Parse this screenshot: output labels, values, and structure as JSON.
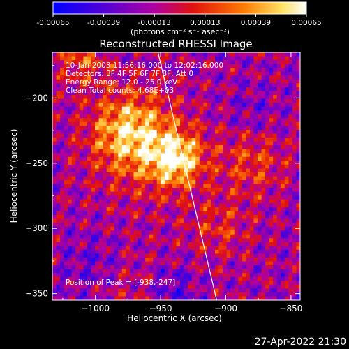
{
  "chart_data": {
    "type": "heatmap",
    "title": "Reconstructed RHESSI Image",
    "xlabel": "Heliocentric X (arcsec)",
    "ylabel": "Heliocentric Y (arcsec)",
    "xlim": [
      -1033,
      -843
    ],
    "ylim": [
      -355,
      -165
    ],
    "xticks": [
      -1000,
      -950,
      -900,
      -850
    ],
    "yticks": [
      -200,
      -250,
      -300,
      -350
    ],
    "colorbar": {
      "range": [
        -0.00065,
        0.00065
      ],
      "ticks": [
        -0.00065,
        -0.00039,
        -0.00013,
        0.00013,
        0.00039,
        0.00065
      ],
      "tick_labels": [
        "-0.00065",
        "-0.00039",
        "-0.00013",
        "0.00013",
        "0.00039",
        "0.00065"
      ],
      "unit_label": "(photons cm⁻² s⁻¹ asec⁻²)"
    },
    "annotations": [
      "10-Jan-2003 11:56:16.000 to 12:02:16.000",
      "Detectors: 3F 4F 5F 6F 7F 8F, Att 0",
      "Energy Range: 12.0 - 25.0 keV",
      "Clean     Total counts: 4.68E+03"
    ],
    "peak_label": "Position of Peak = [-938,-247]",
    "peak": [
      -938,
      -247
    ],
    "limb_line": [
      [
        -952,
        -165
      ],
      [
        -907,
        -355
      ]
    ],
    "timestamp": "27-Apr-2022 21:30"
  }
}
